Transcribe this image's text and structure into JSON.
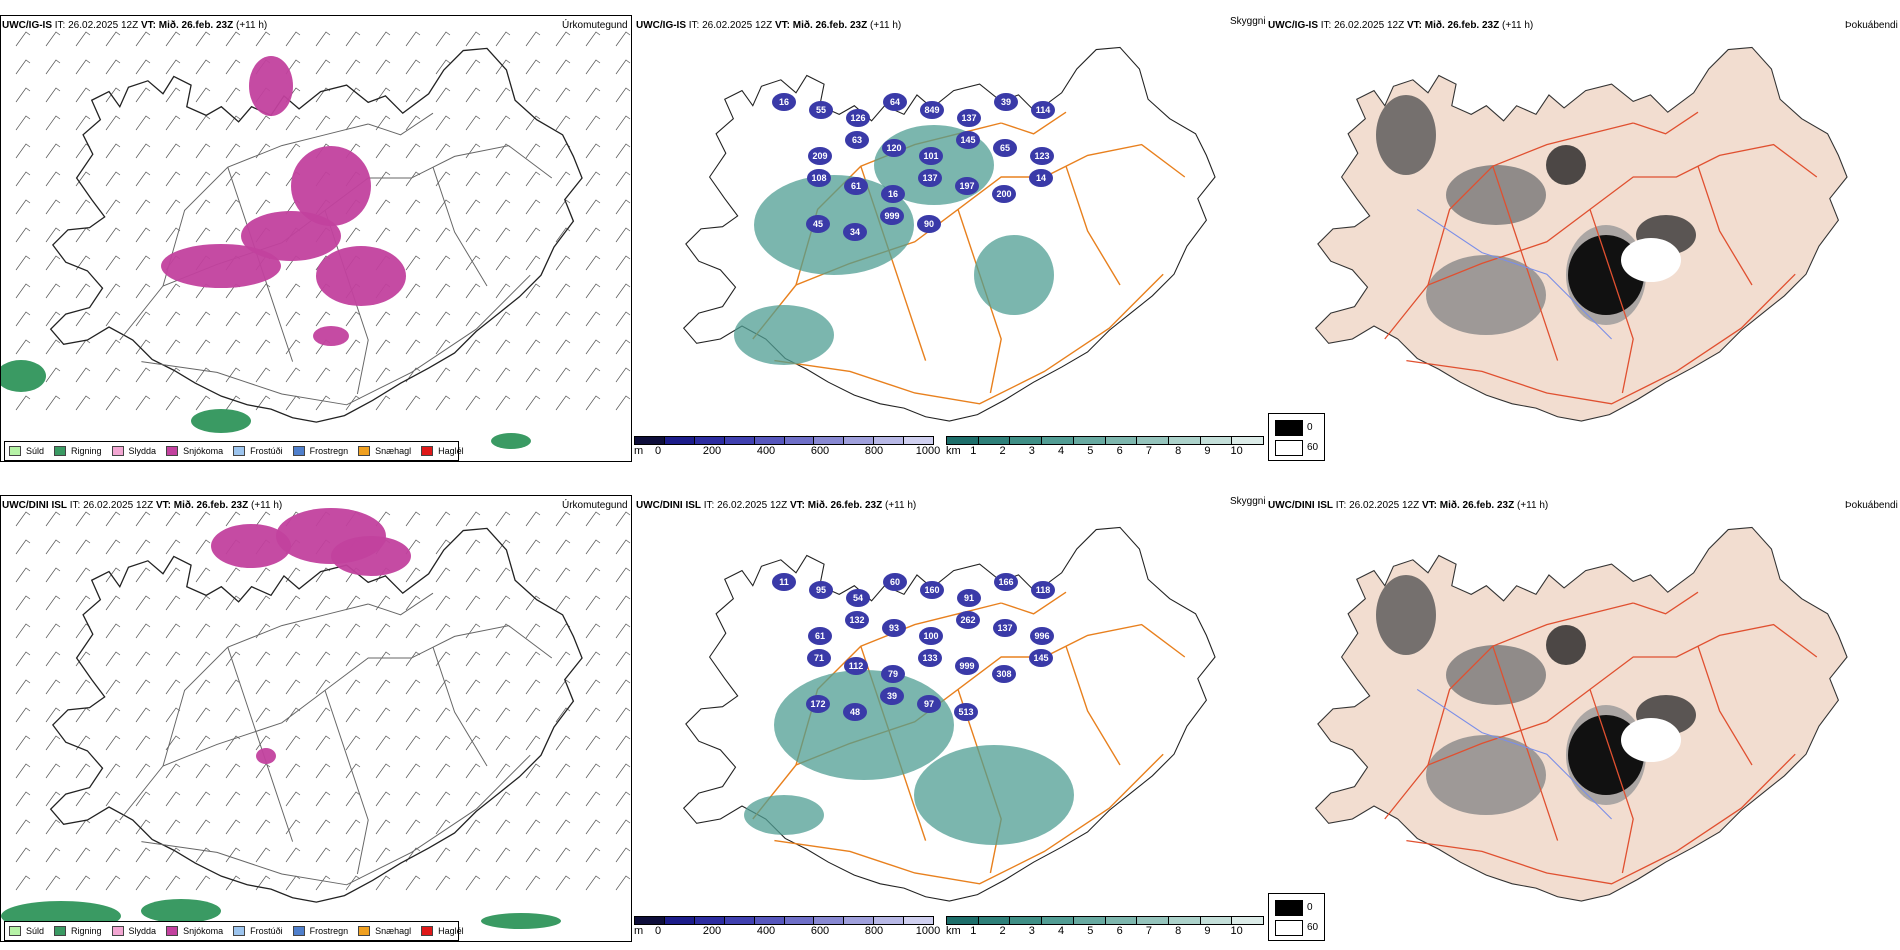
{
  "rows": [
    {
      "model": "UWC/IG-IS",
      "it_label": "IT:",
      "it_value": "26.02.2025 12Z",
      "vt_label": "VT:",
      "vt_value": "Mið. 26.feb. 23Z",
      "lead": "(+11 h)",
      "precip_title": "Úrkomutegund",
      "vis_title": "Skyggni",
      "fog_title": "Þokuábendi",
      "height_labels": [
        "16",
        "55",
        "126",
        "64",
        "849",
        "137",
        "39",
        "114",
        "209",
        "63",
        "120",
        "101",
        "145",
        "65",
        "123",
        "108",
        "61",
        "16",
        "137",
        "197",
        "200",
        "14",
        "45",
        "34",
        "999",
        "90"
      ]
    },
    {
      "model": "UWC/DINI ISL",
      "it_label": "IT:",
      "it_value": "26.02.2025 12Z",
      "vt_label": "VT:",
      "vt_value": "Mið. 26.feb. 23Z",
      "lead": "(+11 h)",
      "precip_title": "Úrkomutegund",
      "vis_title": "Skyggni",
      "fog_title": "Þokuábendi",
      "height_labels": [
        "11",
        "95",
        "54",
        "60",
        "160",
        "91",
        "166",
        "118",
        "61",
        "132",
        "93",
        "100",
        "262",
        "137",
        "996",
        "71",
        "112",
        "79",
        "133",
        "999",
        "308",
        "145",
        "172",
        "48",
        "39",
        "97",
        "513"
      ]
    }
  ],
  "precip_legend": [
    {
      "label": "Súld",
      "color": "#b6f2a6"
    },
    {
      "label": "Rigning",
      "color": "#3a9a63"
    },
    {
      "label": "Slydda",
      "color": "#f2a6d2"
    },
    {
      "label": "Snjókoma",
      "color": "#c2419e"
    },
    {
      "label": "Frostúði",
      "color": "#9cc4ee"
    },
    {
      "label": "Frostregn",
      "color": "#4f7fcc"
    },
    {
      "label": "Snæhagl",
      "color": "#f0a020"
    },
    {
      "label": "Haglél",
      "color": "#e01818"
    }
  ],
  "height_colorbar": {
    "unit": "m",
    "ticks": [
      "0",
      "200",
      "400",
      "600",
      "800",
      "1000"
    ],
    "colors": [
      "#0e0e3a",
      "#1c1c8a",
      "#2c2ca0",
      "#4040b0",
      "#5757bd",
      "#6f6fc8",
      "#8888d2",
      "#a0a0dc",
      "#b8b8e6",
      "#d0d0f0"
    ]
  },
  "visibility_colorbar": {
    "unit": "km",
    "ticks": [
      "1",
      "2",
      "3",
      "4",
      "5",
      "6",
      "7",
      "8",
      "9",
      "10"
    ],
    "colors": [
      "#1d6e6a",
      "#2e8079",
      "#3f8f86",
      "#529d94",
      "#68aaa1",
      "#7eb7ae",
      "#95c4bc",
      "#acd2ca",
      "#c4dfd9",
      "#dcece8"
    ]
  },
  "fog_legend": [
    {
      "label": "0",
      "color": "#000000"
    },
    {
      "label": "60",
      "color": "#ffffff"
    }
  ],
  "colors": {
    "snow": "#c2419e",
    "rain": "#3a9a63",
    "cloud": "#4f9e93",
    "low_cloud": "#3a3aa8",
    "road": "#e8801e",
    "road_red": "#e05030",
    "land_fog": "#f2ddd0",
    "river": "#7a8ee8"
  }
}
